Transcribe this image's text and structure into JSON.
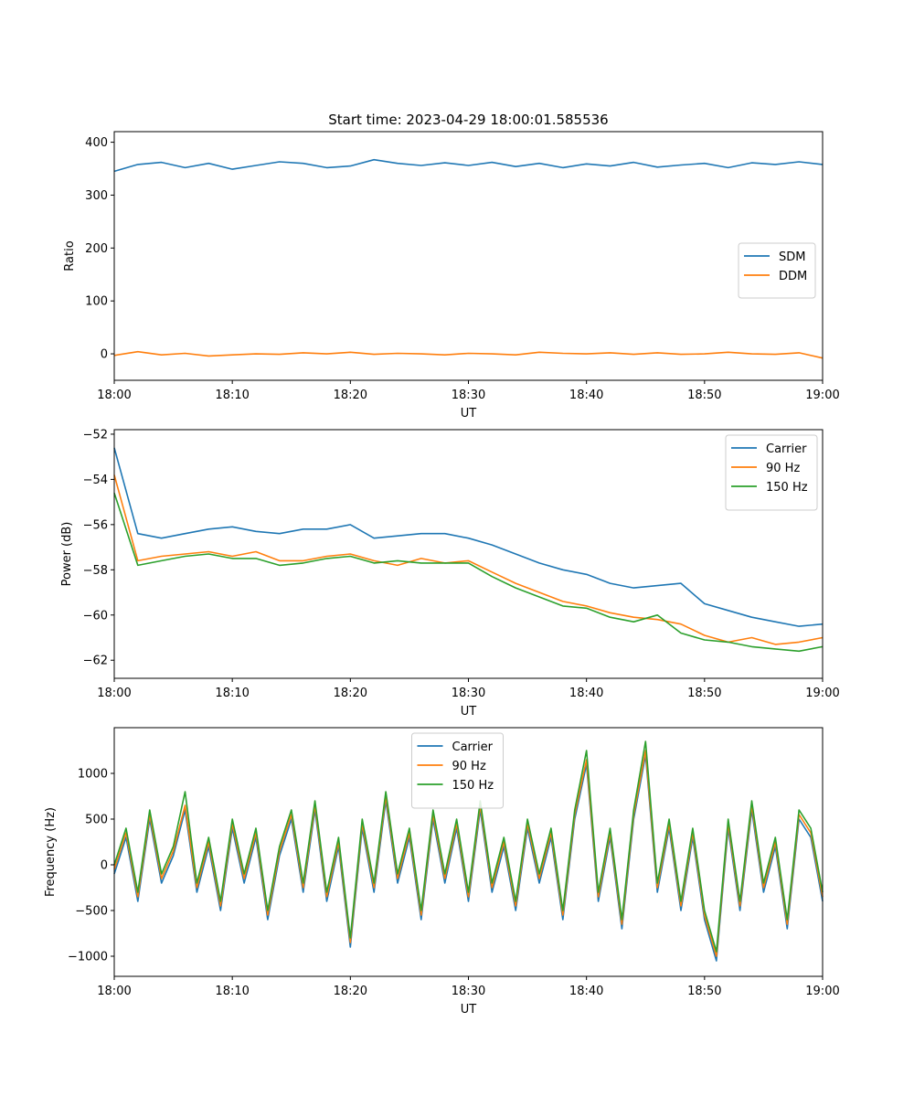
{
  "title": "Start time: 2023-04-29 18:00:01.585536",
  "chart_data": [
    {
      "type": "line",
      "xlabel": "UT",
      "ylabel": "Ratio",
      "xticklabels": [
        "18:00",
        "18:10",
        "18:20",
        "18:30",
        "18:40",
        "18:50",
        "19:00"
      ],
      "yticks": [
        0,
        100,
        200,
        300,
        400
      ],
      "ytick_labels": [
        "0",
        "100",
        "200",
        "300",
        "400"
      ],
      "xlim_minutes": [
        0,
        60
      ],
      "ylim": [
        -50,
        420
      ],
      "legend": "center-right",
      "x_minutes": [
        0,
        2,
        4,
        6,
        8,
        10,
        12,
        14,
        16,
        18,
        20,
        22,
        24,
        26,
        28,
        30,
        32,
        34,
        36,
        38,
        40,
        42,
        44,
        46,
        48,
        50,
        52,
        54,
        56,
        58,
        60
      ],
      "series": [
        {
          "name": "SDM",
          "color": "#1f77b4",
          "values": [
            345,
            358,
            362,
            352,
            360,
            349,
            356,
            363,
            360,
            352,
            355,
            367,
            360,
            356,
            361,
            356,
            362,
            354,
            360,
            352,
            359,
            355,
            362,
            353,
            357,
            360,
            352,
            361,
            358,
            363,
            358
          ]
        },
        {
          "name": "DDM",
          "color": "#ff7f0e",
          "values": [
            -3,
            4,
            -2,
            1,
            -4,
            -2,
            0,
            -1,
            2,
            0,
            3,
            -1,
            1,
            0,
            -2,
            1,
            0,
            -2,
            3,
            1,
            0,
            2,
            -1,
            2,
            -1,
            0,
            3,
            0,
            -1,
            2,
            -8
          ]
        }
      ]
    },
    {
      "type": "line",
      "xlabel": "UT",
      "ylabel": "Power (dB)",
      "xticklabels": [
        "18:00",
        "18:10",
        "18:20",
        "18:30",
        "18:40",
        "18:50",
        "19:00"
      ],
      "yticks": [
        -62,
        -60,
        -58,
        -56,
        -54,
        -52
      ],
      "ytick_labels": [
        "−62",
        "−60",
        "−58",
        "−56",
        "−54",
        "−52"
      ],
      "xlim_minutes": [
        0,
        60
      ],
      "ylim": [
        -62.8,
        -51.8
      ],
      "legend": "top-right",
      "x_minutes": [
        0,
        2,
        4,
        6,
        8,
        10,
        12,
        14,
        16,
        18,
        20,
        22,
        24,
        26,
        28,
        30,
        32,
        34,
        36,
        38,
        40,
        42,
        44,
        46,
        48,
        50,
        52,
        54,
        56,
        58,
        60
      ],
      "series": [
        {
          "name": "Carrier",
          "color": "#1f77b4",
          "values": [
            -52.6,
            -56.4,
            -56.6,
            -56.4,
            -56.2,
            -56.1,
            -56.3,
            -56.4,
            -56.2,
            -56.2,
            -56.0,
            -56.6,
            -56.5,
            -56.4,
            -56.4,
            -56.6,
            -56.9,
            -57.3,
            -57.7,
            -58.0,
            -58.2,
            -58.6,
            -58.8,
            -58.7,
            -58.6,
            -59.5,
            -59.8,
            -60.1,
            -60.3,
            -60.5,
            -60.4
          ]
        },
        {
          "name": "90 Hz",
          "color": "#ff7f0e",
          "values": [
            -53.8,
            -57.6,
            -57.4,
            -57.3,
            -57.2,
            -57.4,
            -57.2,
            -57.6,
            -57.6,
            -57.4,
            -57.3,
            -57.6,
            -57.8,
            -57.5,
            -57.7,
            -57.6,
            -58.1,
            -58.6,
            -59.0,
            -59.4,
            -59.6,
            -59.9,
            -60.1,
            -60.2,
            -60.4,
            -60.9,
            -61.2,
            -61.0,
            -61.3,
            -61.2,
            -61.0
          ]
        },
        {
          "name": "150 Hz",
          "color": "#2ca02c",
          "values": [
            -54.6,
            -57.8,
            -57.6,
            -57.4,
            -57.3,
            -57.5,
            -57.5,
            -57.8,
            -57.7,
            -57.5,
            -57.4,
            -57.7,
            -57.6,
            -57.7,
            -57.7,
            -57.7,
            -58.3,
            -58.8,
            -59.2,
            -59.6,
            -59.7,
            -60.1,
            -60.3,
            -60.0,
            -60.8,
            -61.1,
            -61.2,
            -61.4,
            -61.5,
            -61.6,
            -61.4
          ]
        }
      ]
    },
    {
      "type": "line",
      "xlabel": "UT",
      "ylabel": "Frequency (Hz)",
      "xticklabels": [
        "18:00",
        "18:10",
        "18:20",
        "18:30",
        "18:40",
        "18:50",
        "19:00"
      ],
      "yticks": [
        -1000,
        -500,
        0,
        500,
        1000
      ],
      "ytick_labels": [
        "−1000",
        "−500",
        "0",
        "500",
        "1000"
      ],
      "xlim_minutes": [
        0,
        60
      ],
      "ylim": [
        -1220,
        1500
      ],
      "legend": "top-center",
      "x_minutes": [
        0,
        1,
        2,
        3,
        4,
        5,
        6,
        7,
        8,
        9,
        10,
        11,
        12,
        13,
        14,
        15,
        16,
        17,
        18,
        19,
        20,
        21,
        22,
        23,
        24,
        25,
        26,
        27,
        28,
        29,
        30,
        31,
        32,
        33,
        34,
        35,
        36,
        37,
        38,
        39,
        40,
        41,
        42,
        43,
        44,
        45,
        46,
        47,
        48,
        49,
        50,
        51,
        52,
        53,
        54,
        55,
        56,
        57,
        58,
        59,
        60
      ],
      "series": [
        {
          "name": "Carrier",
          "color": "#1f77b4",
          "values": [
            -100,
            300,
            -400,
            500,
            -200,
            100,
            600,
            -300,
            200,
            -500,
            400,
            -200,
            300,
            -600,
            100,
            500,
            -300,
            600,
            -400,
            200,
            -900,
            400,
            -300,
            700,
            -200,
            300,
            -600,
            500,
            -200,
            400,
            -400,
            600,
            -300,
            200,
            -500,
            400,
            -200,
            300,
            -600,
            500,
            1100,
            -400,
            300,
            -700,
            500,
            1200,
            -300,
            400,
            -500,
            300,
            -600,
            -1050,
            400,
            -500,
            600,
            -300,
            200,
            -700,
            500,
            300,
            -400
          ]
        },
        {
          "name": "90 Hz",
          "color": "#ff7f0e",
          "values": [
            -50,
            350,
            -350,
            550,
            -150,
            150,
            650,
            -250,
            250,
            -450,
            450,
            -150,
            350,
            -550,
            150,
            550,
            -250,
            650,
            -350,
            250,
            -850,
            450,
            -250,
            750,
            -150,
            350,
            -550,
            550,
            -150,
            450,
            -350,
            650,
            -250,
            250,
            -450,
            450,
            -150,
            350,
            -550,
            550,
            1150,
            -350,
            350,
            -650,
            550,
            1250,
            -250,
            450,
            -450,
            350,
            -550,
            -1000,
            450,
            -450,
            650,
            -250,
            250,
            -650,
            550,
            350,
            -350
          ]
        },
        {
          "name": "150 Hz",
          "color": "#2ca02c",
          "values": [
            0,
            400,
            -300,
            600,
            -100,
            200,
            800,
            -200,
            300,
            -400,
            500,
            -100,
            400,
            -500,
            200,
            600,
            -200,
            700,
            -300,
            300,
            -800,
            500,
            -200,
            800,
            -100,
            400,
            -500,
            600,
            -100,
            500,
            -300,
            700,
            -200,
            300,
            -400,
            500,
            -100,
            400,
            -500,
            600,
            1250,
            -300,
            400,
            -600,
            600,
            1350,
            -200,
            500,
            -400,
            400,
            -500,
            -950,
            500,
            -400,
            700,
            -200,
            300,
            -600,
            600,
            400,
            -300
          ]
        }
      ]
    }
  ]
}
